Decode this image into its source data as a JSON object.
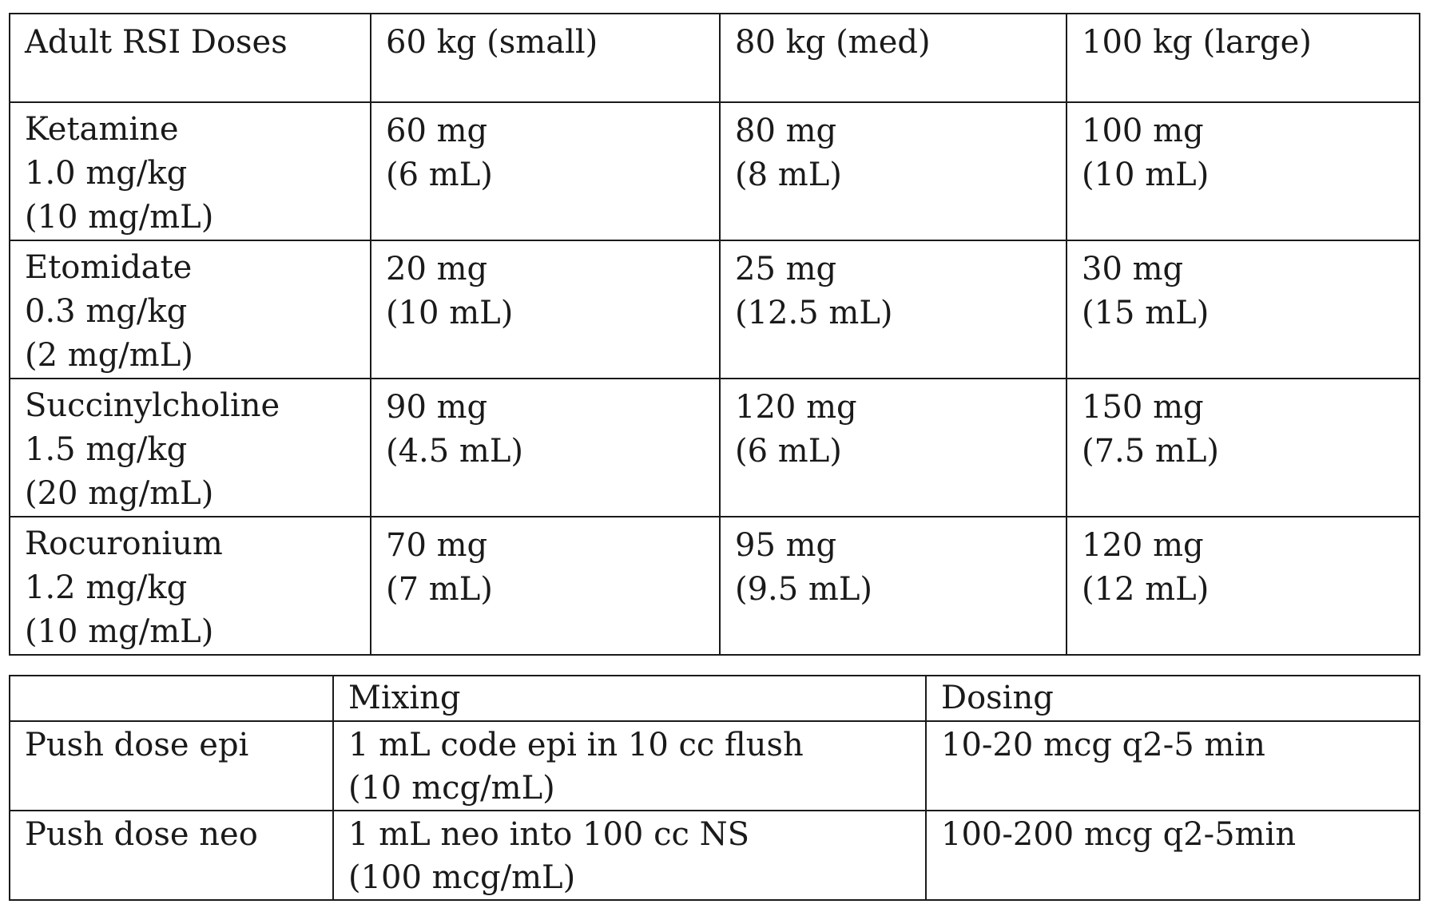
{
  "rsi_table": {
    "headers": [
      "Adult RSI Doses",
      "60 kg (small)",
      "80 kg (med)",
      "100 kg (large)"
    ],
    "rows": [
      {
        "drug": "Ketamine\n1.0 mg/kg\n(10 mg/mL)",
        "doses": [
          "60 mg\n(6 mL)",
          "80 mg\n(8 mL)",
          "100 mg\n(10 mL)"
        ]
      },
      {
        "drug": "Etomidate\n0.3 mg/kg\n(2 mg/mL)",
        "doses": [
          "20 mg\n(10 mL)",
          "25 mg\n(12.5 mL)",
          "30 mg\n(15 mL)"
        ]
      },
      {
        "drug": "Succinylcholine\n1.5 mg/kg\n(20 mg/mL)",
        "doses": [
          "90 mg\n(4.5 mL)",
          "120 mg\n(6 mL)",
          "150 mg\n(7.5 mL)"
        ]
      },
      {
        "drug": "Rocuronium\n1.2 mg/kg\n(10 mg/mL)",
        "doses": [
          "70 mg\n(7 mL)",
          "95 mg\n(9.5 mL)",
          "120 mg\n(12 mL)"
        ]
      }
    ]
  },
  "push_table": {
    "headers": [
      "",
      "Mixing",
      "Dosing"
    ],
    "rows": [
      {
        "name": "Push dose epi",
        "mixing": "1 mL code epi in 10 cc flush\n(10 mcg/mL)",
        "dosing": "10-20 mcg q2-5 min"
      },
      {
        "name": "Push dose neo",
        "mixing": "1 mL neo into 100 cc NS\n(100 mcg/mL)",
        "dosing": "100-200 mcg q2-5min"
      }
    ]
  }
}
